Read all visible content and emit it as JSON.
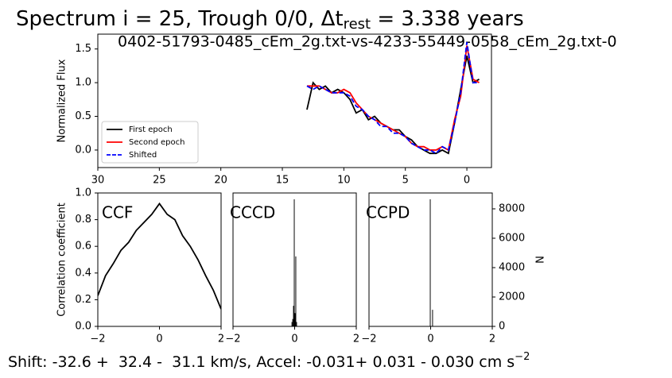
{
  "chart_data": [
    {
      "type": "line",
      "title": {
        "main": "Spectrum i = 25, Trough 0/0, Δt",
        "sub": "rest",
        "tail": " = 3.338 years"
      },
      "subtitle": "0402-51793-0485_cEm_2g.txt-vs-4233-55449-0558_cEm_2g.txt-0",
      "ylabel": "Normalized Flux",
      "x": [
        13,
        12.5,
        12,
        11.5,
        11,
        10.5,
        10,
        9.5,
        9,
        8.5,
        8,
        7.5,
        7,
        6.5,
        6,
        5.5,
        5,
        4.5,
        4,
        3.5,
        3,
        2.5,
        2,
        1.5,
        1,
        0.5,
        0,
        -0.5,
        -1
      ],
      "series": [
        {
          "name": "First epoch",
          "color": "#000000",
          "dashed": false,
          "values": [
            0.6,
            1.0,
            0.9,
            0.95,
            0.85,
            0.9,
            0.85,
            0.75,
            0.55,
            0.6,
            0.45,
            0.5,
            0.4,
            0.35,
            0.3,
            0.3,
            0.2,
            0.15,
            0.05,
            0.0,
            -0.05,
            -0.05,
            0.0,
            -0.05,
            0.4,
            0.9,
            1.4,
            1.0,
            1.05
          ]
        },
        {
          "name": "Second epoch",
          "color": "#ff0000",
          "dashed": false,
          "values": [
            0.95,
            0.95,
            0.95,
            0.9,
            0.85,
            0.85,
            0.9,
            0.85,
            0.7,
            0.6,
            0.5,
            0.45,
            0.4,
            0.35,
            0.3,
            0.25,
            0.2,
            0.1,
            0.05,
            0.05,
            0.0,
            0.0,
            0.05,
            0.0,
            0.45,
            0.8,
            1.55,
            1.05,
            1.0
          ]
        },
        {
          "name": "Shifted",
          "color": "#0000ff",
          "dashed": true,
          "values": [
            0.95,
            0.9,
            0.95,
            0.9,
            0.85,
            0.85,
            0.85,
            0.8,
            0.65,
            0.6,
            0.5,
            0.45,
            0.35,
            0.35,
            0.25,
            0.25,
            0.2,
            0.1,
            0.05,
            0.0,
            0.0,
            -0.05,
            0.05,
            0.0,
            0.4,
            0.85,
            1.6,
            1.0,
            1.0
          ]
        }
      ],
      "xlim": [
        30,
        -2
      ],
      "xticks": [
        30,
        25,
        20,
        15,
        10,
        5,
        0
      ],
      "ylim": [
        -0.26,
        1.72
      ],
      "yticks": [
        {
          "value": 0,
          "label": "0.0"
        },
        {
          "value": 0.5,
          "label": "0.5"
        },
        {
          "value": 1,
          "label": "1.0"
        },
        {
          "value": 1.5,
          "label": "1.5"
        }
      ],
      "legend": "lower left"
    },
    {
      "type": "line",
      "annotation": "CCF",
      "ylabel": "Correlation coefficient",
      "x": [
        -2,
        -1.75,
        -1.5,
        -1.25,
        -1,
        -0.75,
        -0.5,
        -0.25,
        0,
        0.25,
        0.5,
        0.75,
        1,
        1.25,
        1.5,
        1.75,
        2
      ],
      "series": [
        {
          "color": "#000000",
          "dashed": false,
          "values": [
            0.23,
            0.38,
            0.47,
            0.57,
            0.63,
            0.72,
            0.78,
            0.84,
            0.92,
            0.84,
            0.8,
            0.68,
            0.6,
            0.5,
            0.38,
            0.27,
            0.13
          ]
        }
      ],
      "xlim": [
        -2,
        2
      ],
      "xticks": [
        {
          "value": -2,
          "label": "−2"
        },
        0,
        2
      ],
      "ylim": [
        0,
        1
      ],
      "yticks": [
        {
          "value": 0,
          "label": "0.0"
        },
        {
          "value": 0.2,
          "label": "0.2"
        },
        {
          "value": 0.4,
          "label": "0.4"
        },
        {
          "value": 0.6,
          "label": "0.6"
        },
        {
          "value": 0.8,
          "label": "0.8"
        },
        {
          "value": 1,
          "label": "1.0"
        }
      ]
    },
    {
      "type": "histogram",
      "annotation": "CCCD",
      "color": "#000000",
      "bins": [
        -0.1,
        -0.075,
        -0.05,
        -0.025,
        0,
        0.025,
        0.05,
        0.075,
        0.1
      ],
      "counts": [
        300,
        500,
        1400,
        8650,
        900,
        4760,
        300,
        0
      ],
      "xlim": [
        -2,
        2
      ],
      "xticks": [
        {
          "value": -2,
          "label": "−2"
        },
        0,
        2
      ],
      "ylim": [
        0,
        9080
      ]
    },
    {
      "type": "histogram",
      "annotation": "CCPD",
      "color": "#000000",
      "ylabel": "N",
      "yaxis_side": "right",
      "bins": [
        -0.025,
        0,
        0.025,
        0.05,
        0.075
      ],
      "counts": [
        8650,
        0,
        0,
        1130
      ],
      "xlim": [
        -2,
        2
      ],
      "xticks": [
        {
          "value": -2,
          "label": "−2"
        },
        0,
        2
      ],
      "ylim": [
        0,
        9080
      ],
      "yticks": [
        0,
        2000,
        4000,
        6000,
        8000
      ]
    }
  ],
  "footer": {
    "text": "Shift: -32.6 +  32.4 -  31.1 km/s, Accel: -0.031+ 0.031 - 0.030 cm s",
    "sup": "−2"
  }
}
